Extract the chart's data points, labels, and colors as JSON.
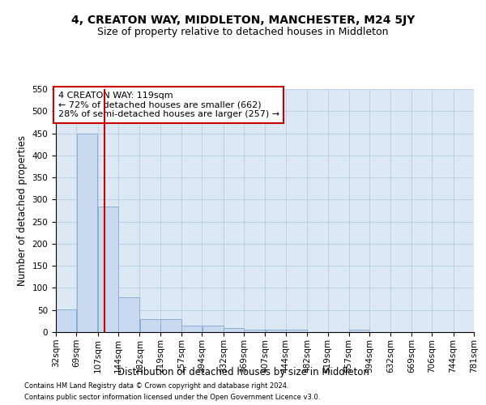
{
  "title": "4, CREATON WAY, MIDDLETON, MANCHESTER, M24 5JY",
  "subtitle": "Size of property relative to detached houses in Middleton",
  "xlabel": "Distribution of detached houses by size in Middleton",
  "ylabel": "Number of detached properties",
  "footnote1": "Contains HM Land Registry data © Crown copyright and database right 2024.",
  "footnote2": "Contains public sector information licensed under the Open Government Licence v3.0.",
  "bins": [
    32,
    69,
    107,
    144,
    182,
    219,
    257,
    294,
    332,
    369,
    407,
    444,
    482,
    519,
    557,
    594,
    632,
    669,
    706,
    744,
    781
  ],
  "bin_labels": [
    "32sqm",
    "69sqm",
    "107sqm",
    "144sqm",
    "182sqm",
    "219sqm",
    "257sqm",
    "294sqm",
    "332sqm",
    "369sqm",
    "407sqm",
    "444sqm",
    "482sqm",
    "519sqm",
    "557sqm",
    "594sqm",
    "632sqm",
    "669sqm",
    "706sqm",
    "744sqm",
    "781sqm"
  ],
  "values": [
    52,
    450,
    285,
    78,
    30,
    30,
    14,
    14,
    10,
    5,
    5,
    5,
    0,
    0,
    5,
    0,
    0,
    0,
    0,
    0
  ],
  "bar_color": "#c9d9f0",
  "bar_edge_color": "#8aafd4",
  "red_line_x": 119,
  "annotation_line1": "4 CREATON WAY: 119sqm",
  "annotation_line2": "← 72% of detached houses are smaller (662)",
  "annotation_line3": "28% of semi-detached houses are larger (257) →",
  "annotation_box_color": "#ffffff",
  "annotation_box_edge_color": "#cc0000",
  "red_line_color": "#cc0000",
  "ylim": [
    0,
    550
  ],
  "yticks": [
    0,
    50,
    100,
    150,
    200,
    250,
    300,
    350,
    400,
    450,
    500,
    550
  ],
  "plot_bg_color": "#dde8f5",
  "background_color": "#ffffff",
  "grid_color": "#b8cce4",
  "title_fontsize": 10,
  "subtitle_fontsize": 9,
  "axis_label_fontsize": 8.5,
  "tick_fontsize": 7.5,
  "annot_fontsize": 8
}
